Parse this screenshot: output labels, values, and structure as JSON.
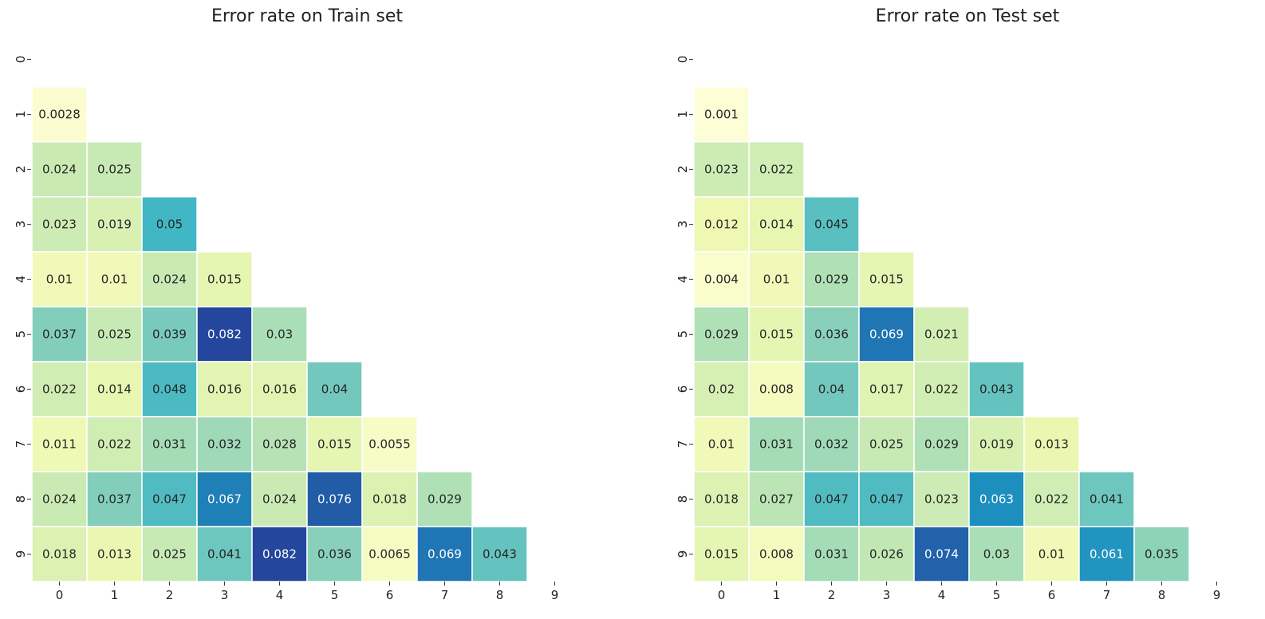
{
  "chart_data": [
    {
      "type": "heatmap",
      "title": "Error rate on Train set",
      "xlabel": "",
      "ylabel": "",
      "x_ticks": [
        "0",
        "1",
        "2",
        "3",
        "4",
        "5",
        "6",
        "7",
        "8",
        "9"
      ],
      "y_ticks": [
        "0",
        "1",
        "2",
        "3",
        "4",
        "5",
        "6",
        "7",
        "8",
        "9"
      ],
      "mask": "upper-triangle-including-diagonal",
      "colormap": "YlGnBu",
      "color_range": [
        0,
        0.1
      ],
      "colorbar": false,
      "cells": [
        {
          "row": 1,
          "col": 0,
          "label": "0.0028",
          "value": 0.0028
        },
        {
          "row": 2,
          "col": 0,
          "label": "0.024",
          "value": 0.024
        },
        {
          "row": 2,
          "col": 1,
          "label": "0.025",
          "value": 0.025
        },
        {
          "row": 3,
          "col": 0,
          "label": "0.023",
          "value": 0.023
        },
        {
          "row": 3,
          "col": 1,
          "label": "0.019",
          "value": 0.019
        },
        {
          "row": 3,
          "col": 2,
          "label": "0.05",
          "value": 0.05
        },
        {
          "row": 4,
          "col": 0,
          "label": "0.01",
          "value": 0.01
        },
        {
          "row": 4,
          "col": 1,
          "label": "0.01",
          "value": 0.01
        },
        {
          "row": 4,
          "col": 2,
          "label": "0.024",
          "value": 0.024
        },
        {
          "row": 4,
          "col": 3,
          "label": "0.015",
          "value": 0.015
        },
        {
          "row": 5,
          "col": 0,
          "label": "0.037",
          "value": 0.037
        },
        {
          "row": 5,
          "col": 1,
          "label": "0.025",
          "value": 0.025
        },
        {
          "row": 5,
          "col": 2,
          "label": "0.039",
          "value": 0.039
        },
        {
          "row": 5,
          "col": 3,
          "label": "0.082",
          "value": 0.082
        },
        {
          "row": 5,
          "col": 4,
          "label": "0.03",
          "value": 0.03
        },
        {
          "row": 6,
          "col": 0,
          "label": "0.022",
          "value": 0.022
        },
        {
          "row": 6,
          "col": 1,
          "label": "0.014",
          "value": 0.014
        },
        {
          "row": 6,
          "col": 2,
          "label": "0.048",
          "value": 0.048
        },
        {
          "row": 6,
          "col": 3,
          "label": "0.016",
          "value": 0.016
        },
        {
          "row": 6,
          "col": 4,
          "label": "0.016",
          "value": 0.016
        },
        {
          "row": 6,
          "col": 5,
          "label": "0.04",
          "value": 0.04
        },
        {
          "row": 7,
          "col": 0,
          "label": "0.011",
          "value": 0.011
        },
        {
          "row": 7,
          "col": 1,
          "label": "0.022",
          "value": 0.022
        },
        {
          "row": 7,
          "col": 2,
          "label": "0.031",
          "value": 0.031
        },
        {
          "row": 7,
          "col": 3,
          "label": "0.032",
          "value": 0.032
        },
        {
          "row": 7,
          "col": 4,
          "label": "0.028",
          "value": 0.028
        },
        {
          "row": 7,
          "col": 5,
          "label": "0.015",
          "value": 0.015
        },
        {
          "row": 7,
          "col": 6,
          "label": "0.0055",
          "value": 0.0055
        },
        {
          "row": 8,
          "col": 0,
          "label": "0.024",
          "value": 0.024
        },
        {
          "row": 8,
          "col": 1,
          "label": "0.037",
          "value": 0.037
        },
        {
          "row": 8,
          "col": 2,
          "label": "0.047",
          "value": 0.047
        },
        {
          "row": 8,
          "col": 3,
          "label": "0.067",
          "value": 0.067
        },
        {
          "row": 8,
          "col": 4,
          "label": "0.024",
          "value": 0.024
        },
        {
          "row": 8,
          "col": 5,
          "label": "0.076",
          "value": 0.076
        },
        {
          "row": 8,
          "col": 6,
          "label": "0.018",
          "value": 0.018
        },
        {
          "row": 8,
          "col": 7,
          "label": "0.029",
          "value": 0.029
        },
        {
          "row": 9,
          "col": 0,
          "label": "0.018",
          "value": 0.018
        },
        {
          "row": 9,
          "col": 1,
          "label": "0.013",
          "value": 0.013
        },
        {
          "row": 9,
          "col": 2,
          "label": "0.025",
          "value": 0.025
        },
        {
          "row": 9,
          "col": 3,
          "label": "0.041",
          "value": 0.041
        },
        {
          "row": 9,
          "col": 4,
          "label": "0.082",
          "value": 0.082
        },
        {
          "row": 9,
          "col": 5,
          "label": "0.036",
          "value": 0.036
        },
        {
          "row": 9,
          "col": 6,
          "label": "0.0065",
          "value": 0.0065
        },
        {
          "row": 9,
          "col": 7,
          "label": "0.069",
          "value": 0.069
        },
        {
          "row": 9,
          "col": 8,
          "label": "0.043",
          "value": 0.043
        }
      ]
    },
    {
      "type": "heatmap",
      "title": "Error rate on Test set",
      "xlabel": "",
      "ylabel": "",
      "x_ticks": [
        "0",
        "1",
        "2",
        "3",
        "4",
        "5",
        "6",
        "7",
        "8",
        "9"
      ],
      "y_ticks": [
        "0",
        "1",
        "2",
        "3",
        "4",
        "5",
        "6",
        "7",
        "8",
        "9"
      ],
      "mask": "upper-triangle-including-diagonal",
      "colormap": "YlGnBu",
      "color_range": [
        0,
        0.1
      ],
      "colorbar": false,
      "cells": [
        {
          "row": 1,
          "col": 0,
          "label": "0.001",
          "value": 0.001
        },
        {
          "row": 2,
          "col": 0,
          "label": "0.023",
          "value": 0.023
        },
        {
          "row": 2,
          "col": 1,
          "label": "0.022",
          "value": 0.022
        },
        {
          "row": 3,
          "col": 0,
          "label": "0.012",
          "value": 0.012
        },
        {
          "row": 3,
          "col": 1,
          "label": "0.014",
          "value": 0.014
        },
        {
          "row": 3,
          "col": 2,
          "label": "0.045",
          "value": 0.045
        },
        {
          "row": 4,
          "col": 0,
          "label": "0.004",
          "value": 0.004
        },
        {
          "row": 4,
          "col": 1,
          "label": "0.01",
          "value": 0.01
        },
        {
          "row": 4,
          "col": 2,
          "label": "0.029",
          "value": 0.029
        },
        {
          "row": 4,
          "col": 3,
          "label": "0.015",
          "value": 0.015
        },
        {
          "row": 5,
          "col": 0,
          "label": "0.029",
          "value": 0.029
        },
        {
          "row": 5,
          "col": 1,
          "label": "0.015",
          "value": 0.015
        },
        {
          "row": 5,
          "col": 2,
          "label": "0.036",
          "value": 0.036
        },
        {
          "row": 5,
          "col": 3,
          "label": "0.069",
          "value": 0.069
        },
        {
          "row": 5,
          "col": 4,
          "label": "0.021",
          "value": 0.021
        },
        {
          "row": 6,
          "col": 0,
          "label": "0.02",
          "value": 0.02
        },
        {
          "row": 6,
          "col": 1,
          "label": "0.008",
          "value": 0.008
        },
        {
          "row": 6,
          "col": 2,
          "label": "0.04",
          "value": 0.04
        },
        {
          "row": 6,
          "col": 3,
          "label": "0.017",
          "value": 0.017
        },
        {
          "row": 6,
          "col": 4,
          "label": "0.022",
          "value": 0.022
        },
        {
          "row": 6,
          "col": 5,
          "label": "0.043",
          "value": 0.043
        },
        {
          "row": 7,
          "col": 0,
          "label": "0.01",
          "value": 0.01
        },
        {
          "row": 7,
          "col": 1,
          "label": "0.031",
          "value": 0.031
        },
        {
          "row": 7,
          "col": 2,
          "label": "0.032",
          "value": 0.032
        },
        {
          "row": 7,
          "col": 3,
          "label": "0.025",
          "value": 0.025
        },
        {
          "row": 7,
          "col": 4,
          "label": "0.029",
          "value": 0.029
        },
        {
          "row": 7,
          "col": 5,
          "label": "0.019",
          "value": 0.019
        },
        {
          "row": 7,
          "col": 6,
          "label": "0.013",
          "value": 0.013
        },
        {
          "row": 8,
          "col": 0,
          "label": "0.018",
          "value": 0.018
        },
        {
          "row": 8,
          "col": 1,
          "label": "0.027",
          "value": 0.027
        },
        {
          "row": 8,
          "col": 2,
          "label": "0.047",
          "value": 0.047
        },
        {
          "row": 8,
          "col": 3,
          "label": "0.047",
          "value": 0.047
        },
        {
          "row": 8,
          "col": 4,
          "label": "0.023",
          "value": 0.023
        },
        {
          "row": 8,
          "col": 5,
          "label": "0.063",
          "value": 0.063
        },
        {
          "row": 8,
          "col": 6,
          "label": "0.022",
          "value": 0.022
        },
        {
          "row": 8,
          "col": 7,
          "label": "0.041",
          "value": 0.041
        },
        {
          "row": 9,
          "col": 0,
          "label": "0.015",
          "value": 0.015
        },
        {
          "row": 9,
          "col": 1,
          "label": "0.008",
          "value": 0.008
        },
        {
          "row": 9,
          "col": 2,
          "label": "0.031",
          "value": 0.031
        },
        {
          "row": 9,
          "col": 3,
          "label": "0.026",
          "value": 0.026
        },
        {
          "row": 9,
          "col": 4,
          "label": "0.074",
          "value": 0.074
        },
        {
          "row": 9,
          "col": 5,
          "label": "0.03",
          "value": 0.03
        },
        {
          "row": 9,
          "col": 6,
          "label": "0.01",
          "value": 0.01
        },
        {
          "row": 9,
          "col": 7,
          "label": "0.061",
          "value": 0.061
        },
        {
          "row": 9,
          "col": 8,
          "label": "0.035",
          "value": 0.035
        }
      ]
    }
  ]
}
